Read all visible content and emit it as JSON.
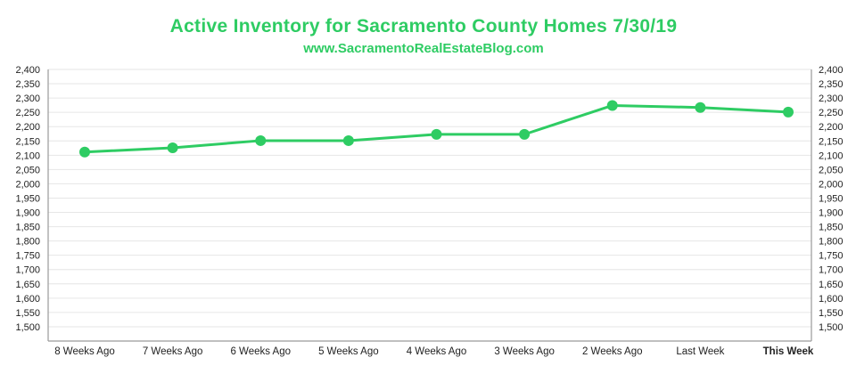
{
  "colors": {
    "accent": "#2ecc63",
    "grid": "#e6e6e6",
    "axis": "#9a9a9a",
    "text": "#222222"
  },
  "chart_data": {
    "type": "line",
    "title": "Active Inventory for Sacramento County Homes 7/30/19",
    "subtitle": "www.SacramentoRealEstateBlog.com",
    "categories": [
      "8 Weeks Ago",
      "7 Weeks Ago",
      "6 Weeks Ago",
      "5 Weeks Ago",
      "4 Weeks Ago",
      "3 Weeks Ago",
      "2 Weeks Ago",
      "Last Week",
      "This Week"
    ],
    "highlight_category": "This Week",
    "series": [
      {
        "values": [
          2111,
          2126,
          2151,
          2151,
          2173,
          2173,
          2274,
          2267,
          2251
        ]
      }
    ],
    "ylim": [
      1450,
      2400
    ],
    "yticks": [
      "2,400",
      "2,350",
      "2,300",
      "2,250",
      "2,200",
      "2,150",
      "2,100",
      "2,050",
      "2,000",
      "1,950",
      "1,900",
      "1,850",
      "1,800",
      "1,750",
      "1,700",
      "1,650",
      "1,600",
      "1,550",
      "1,500"
    ],
    "ytick_values": [
      2400,
      2350,
      2300,
      2250,
      2200,
      2150,
      2100,
      2050,
      2000,
      1950,
      1900,
      1850,
      1800,
      1750,
      1700,
      1650,
      1600,
      1550,
      1500
    ],
    "grid": true,
    "dual_y_axis": true
  }
}
